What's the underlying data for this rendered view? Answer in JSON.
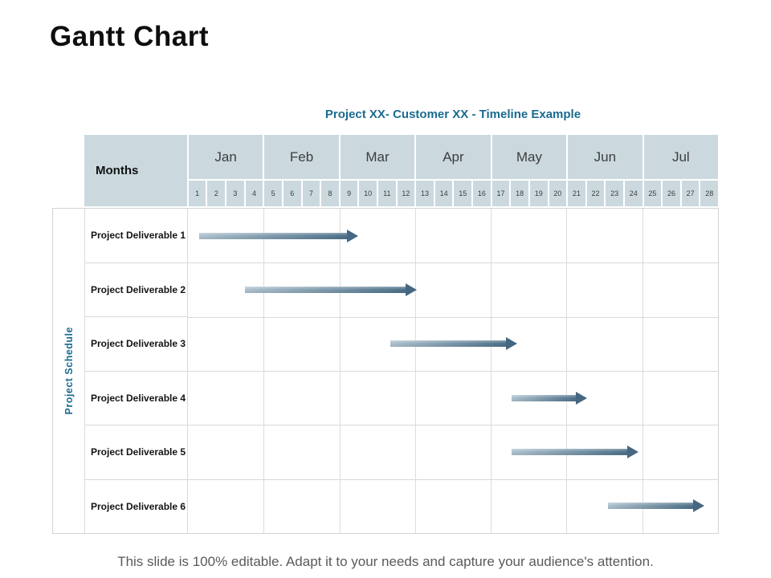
{
  "slide": {
    "title": "Gantt Chart",
    "footer": "This slide is 100% editable. Adapt it to your needs and capture your audience's attention."
  },
  "chart_data": {
    "type": "gantt",
    "title": "Project XX- Customer XX - Timeline Example",
    "months_header_label": "Months",
    "schedule_label": "Project Schedule",
    "months": [
      "Jan",
      "Feb",
      "Mar",
      "Apr",
      "May",
      "Jun",
      "Jul"
    ],
    "weeks_per_month": 4,
    "week_numbers": [
      1,
      2,
      3,
      4,
      5,
      6,
      7,
      8,
      9,
      10,
      11,
      12,
      13,
      14,
      15,
      16,
      17,
      18,
      19,
      20,
      21,
      22,
      23,
      24,
      25,
      26,
      27,
      28
    ],
    "week_axis_range": [
      0,
      28
    ],
    "tasks": [
      {
        "label": "Project Deliverable 1",
        "start_week": 0.6,
        "end_week": 9.0
      },
      {
        "label": "Project Deliverable 2",
        "start_week": 3.0,
        "end_week": 12.1
      },
      {
        "label": "Project Deliverable 3",
        "start_week": 10.7,
        "end_week": 17.4
      },
      {
        "label": "Project Deliverable 4",
        "start_week": 17.1,
        "end_week": 21.1
      },
      {
        "label": "Project Deliverable 5",
        "start_week": 17.1,
        "end_week": 23.8
      },
      {
        "label": "Project Deliverable 6",
        "start_week": 22.2,
        "end_week": 27.3
      }
    ],
    "layout": {
      "grid": true,
      "months_on_top": true,
      "rows": 6
    },
    "colors": {
      "header_bg": "#cbd9df",
      "accent_teal": "#1a6b8f",
      "arrow_gradient_start": "#aec2cf",
      "arrow_gradient_end": "#4d7089",
      "arrow_head": "#466781",
      "grid_line": "#d9d9d9",
      "title_text": "#0e0e0e",
      "footer_text": "#5a5a5a"
    }
  }
}
